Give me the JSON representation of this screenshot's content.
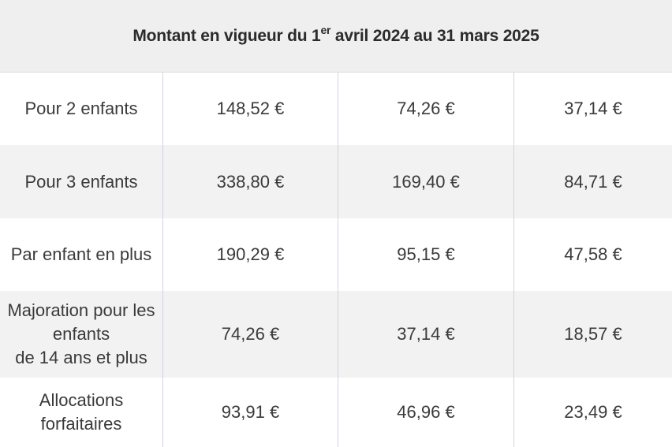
{
  "table": {
    "title_pre": "Montant en vigueur du 1",
    "title_sup": "er",
    "title_post": " avril 2024 au 31 mars 2025",
    "rows": [
      {
        "label": [
          "Pour 2 enfants"
        ],
        "values": [
          "148,52 €",
          "74,26 €",
          "37,14 €"
        ]
      },
      {
        "label": [
          "Pour 3 enfants"
        ],
        "values": [
          "338,80 €",
          "169,40 €",
          "84,71 €"
        ]
      },
      {
        "label": [
          "Par enfant en plus"
        ],
        "values": [
          "190,29 €",
          "95,15 €",
          "47,58 €"
        ]
      },
      {
        "label": [
          "Majoration pour les",
          "enfants",
          "de 14 ans et plus"
        ],
        "values": [
          "74,26 €",
          "37,14 €",
          "18,57 €"
        ]
      },
      {
        "label": [
          "Allocations",
          "forfaitaires"
        ],
        "values": [
          "93,91 €",
          "46,96 €",
          "23,49 €"
        ]
      }
    ]
  }
}
